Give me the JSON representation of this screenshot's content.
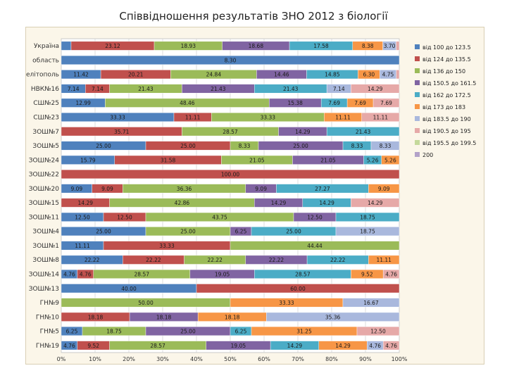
{
  "chart_data": {
    "type": "bar",
    "stacked": "percent",
    "orientation": "horizontal",
    "title": "Співвідношення результатів ЗНО 2012 з біології",
    "xlim": [
      0,
      100
    ],
    "xticks": [
      "0%",
      "10%",
      "20%",
      "30%",
      "40%",
      "50%",
      "60%",
      "70%",
      "80%",
      "90%",
      "100%"
    ],
    "grid": true,
    "legend_position": "right",
    "categories": [
      "Україна",
      "область",
      "Мелітополь",
      "НВК№16",
      "СШ№25",
      "СШ№23",
      "ЗОШ№7",
      "ЗОШ№5",
      "ЗОШ№24",
      "ЗОШ№22",
      "ЗОШ№20",
      "ЗОШ№15",
      "ЗОШ№11",
      "ЗОШ№4",
      "ЗОШ№1",
      "ЗОШ№8",
      "ЗОШ№14",
      "ЗОШ№13",
      "ГН№9",
      "ГН№10",
      "ГН№5",
      "ГН№19"
    ],
    "series": [
      {
        "name": "від 100 до 123.5",
        "color": "#4f81bd",
        "values": [
          2.74,
          8.3,
          11.42,
          7.14,
          12.99,
          33.33,
          0.0,
          25.0,
          15.79,
          0.0,
          9.09,
          0.0,
          12.5,
          25.0,
          11.11,
          22.22,
          4.76,
          40.0,
          0.0,
          0.0,
          6.25,
          4.76
        ]
      },
      {
        "name": "від 124 до 135.5",
        "color": "#c0504d",
        "values": [
          23.12,
          0,
          20.21,
          7.14,
          0,
          11.11,
          35.71,
          25.0,
          31.58,
          100.0,
          9.09,
          14.29,
          12.5,
          0.0,
          33.33,
          22.22,
          4.76,
          60.0,
          0,
          18.18,
          0.0,
          9.52
        ]
      },
      {
        "name": "від 136 до 150",
        "color": "#9bbb59",
        "values": [
          18.93,
          0,
          24.84,
          21.43,
          48.46,
          33.33,
          28.57,
          8.33,
          21.05,
          0,
          36.36,
          42.86,
          43.75,
          25.0,
          44.44,
          22.22,
          28.57,
          0,
          50.0,
          0,
          18.75,
          28.57
        ]
      },
      {
        "name": "від 150.5 до 161.5",
        "color": "#8064a2",
        "values": [
          18.68,
          0,
          14.46,
          21.43,
          15.38,
          0,
          14.29,
          25.0,
          21.05,
          0,
          9.09,
          14.29,
          12.5,
          6.25,
          0,
          22.22,
          19.05,
          0,
          0,
          18.18,
          25.0,
          19.05
        ]
      },
      {
        "name": "від 162 до 172.5",
        "color": "#4bacc6",
        "values": [
          17.58,
          0,
          14.85,
          21.43,
          7.69,
          0.0,
          21.43,
          8.33,
          5.26,
          0,
          27.27,
          14.29,
          18.75,
          25.0,
          0,
          22.22,
          28.57,
          0,
          0.0,
          0.0,
          6.25,
          14.29
        ]
      },
      {
        "name": "від 173 до 183",
        "color": "#f79646",
        "values": [
          8.38,
          0,
          6.3,
          0.0,
          7.69,
          11.11,
          0,
          0.0,
          5.26,
          0,
          9.09,
          0.0,
          0,
          0.0,
          0,
          11.11,
          9.52,
          0,
          33.33,
          18.18,
          31.25,
          14.29
        ]
      },
      {
        "name": "від 183.5 до 190",
        "color": "#a9b8dd",
        "values": [
          3.7,
          0,
          4.75,
          7.14,
          0,
          0.0,
          0,
          8.33,
          0,
          0,
          0,
          0.0,
          0,
          18.75,
          0,
          0,
          0.0,
          0,
          16.67,
          35.36,
          0.0,
          4.76
        ]
      },
      {
        "name": "від 190.5 до 195",
        "color": "#e6a9a8",
        "values": [
          0.88,
          0,
          0.89,
          14.29,
          7.69,
          11.11,
          0,
          0,
          0,
          0,
          0,
          14.29,
          0,
          0,
          0,
          0,
          4.76,
          0,
          0,
          0,
          12.5,
          4.76
        ]
      },
      {
        "name": "від 195.5 до 199.5",
        "color": "#c5d99b",
        "values": [
          0.0,
          0,
          0.0,
          0,
          0,
          0,
          0,
          0,
          0,
          0,
          0,
          0,
          0,
          0,
          0,
          0,
          0,
          0,
          0,
          0,
          0,
          0
        ]
      },
      {
        "name": "200",
        "color": "#b3a2c8",
        "values": [
          0,
          0,
          0,
          0,
          0,
          0,
          0,
          0,
          0,
          0,
          0,
          0,
          0,
          0,
          0,
          0,
          0,
          0,
          0,
          0,
          0,
          0
        ]
      }
    ]
  }
}
